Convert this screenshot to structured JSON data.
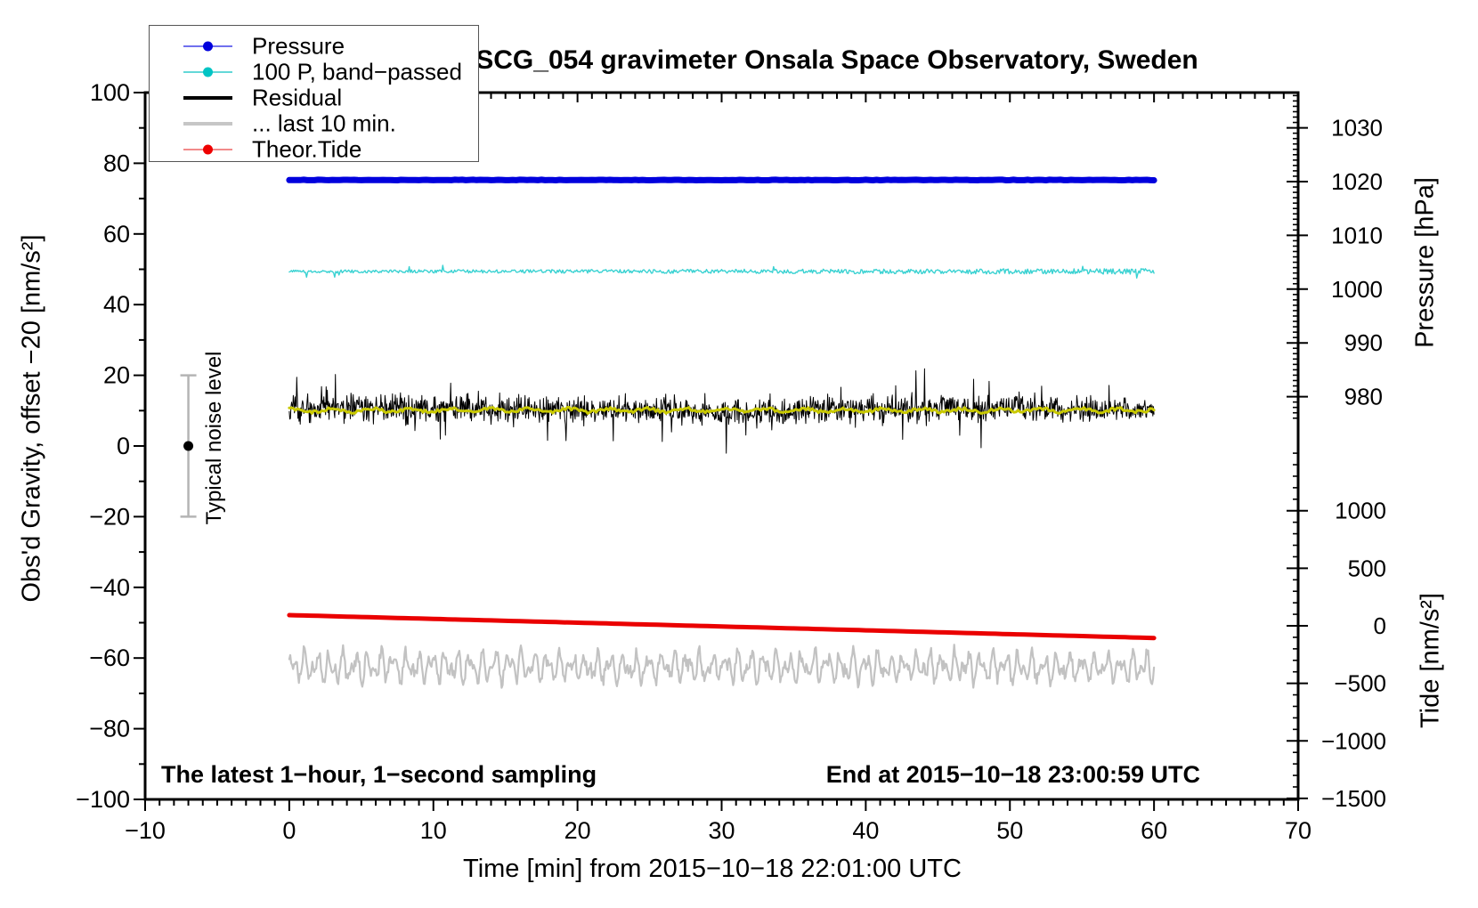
{
  "title": "SCG_054 gravimeter Onsala Space Observatory, Sweden",
  "legend": {
    "items": [
      {
        "label": "Pressure",
        "line_color": "#7070ee",
        "dot_color": "#0000dd",
        "line_width": 2
      },
      {
        "label": "100 P, band−passed",
        "line_color": "#63d8d8",
        "dot_color": "#00c4c4",
        "line_width": 2
      },
      {
        "label": "Residual",
        "line_color": "#000000",
        "dot_color": "",
        "line_width": 4
      },
      {
        "label": "... last 10 min.",
        "line_color": "#c6c6c6",
        "dot_color": "",
        "line_width": 4
      },
      {
        "label": "Theor.Tide",
        "line_color": "#f28a8a",
        "dot_color": "#ee0000",
        "line_width": 2
      }
    ]
  },
  "chart_data": {
    "type": "line",
    "title": "SCG_054 gravimeter Onsala Space Observatory, Sweden",
    "x_axis": {
      "label": "Time [min] from 2015−10−18 22:01:00 UTC",
      "range": [
        -10,
        70
      ],
      "major_ticks": [
        -10,
        0,
        10,
        20,
        30,
        40,
        50,
        60,
        70
      ],
      "minor_step": 1
    },
    "left_axis": {
      "label": "Obs'd Gravity, offset −20 [nm/s²]",
      "range": [
        -100,
        100
      ],
      "major_ticks": [
        100,
        80,
        60,
        40,
        20,
        0,
        -20,
        -40,
        -60,
        -80,
        -100
      ],
      "minor_step": 10
    },
    "pressure_axis": {
      "label": "Pressure [hPa]",
      "major_ticks": [
        1030,
        1020,
        1010,
        1000,
        990,
        980
      ],
      "minor_step": 1,
      "visible_range": [
        976,
        1036.6
      ]
    },
    "tide_axis": {
      "label": "Tide [nm/s²]",
      "major_ticks": [
        1000,
        500,
        0,
        -500,
        -1000,
        -1500
      ],
      "minor_step": 100,
      "visible_range": [
        -1500,
        1500
      ]
    },
    "series": [
      {
        "name": "Pressure",
        "axis": "pressure",
        "color": "#0000dd",
        "width": 7,
        "kind": "flat",
        "x_span": [
          0,
          60
        ],
        "value": 1020.3,
        "noise": 0.05,
        "points": 240
      },
      {
        "name": "100 P, band−passed",
        "axis": "left",
        "color": "#3ad2d2",
        "width": 1.4,
        "kind": "noise",
        "x_span": [
          0,
          60
        ],
        "mean": 49.4,
        "amplitude": 0.55,
        "points": 800
      },
      {
        "name": "Residual",
        "axis": "left",
        "color": "#000000",
        "width": 1,
        "kind": "spiky",
        "x_span": [
          0,
          60
        ],
        "mean": 10.2,
        "sigma": 2.6,
        "spike_amp": 6,
        "points": 1500
      },
      {
        "name": "Residual smoothed",
        "axis": "left",
        "color": "#c9c900",
        "width": 3,
        "kind": "smooth",
        "x_span": [
          0,
          60
        ],
        "mean": 10.1,
        "amplitude": 0.45,
        "points": 420
      },
      {
        "name": "... last 10 min.",
        "axis": "left",
        "color": "#c2c2c2",
        "width": 2.2,
        "kind": "wavy",
        "x_span": [
          0,
          60
        ],
        "mean": -62.5,
        "amplitude": 4.8,
        "points": 900
      },
      {
        "name": "Theor.Tide",
        "axis": "tide",
        "color": "#ea0000",
        "width": 5,
        "kind": "trend",
        "x_span": [
          0,
          60
        ],
        "start": 93,
        "end": -106,
        "points": 120
      }
    ],
    "noise_bar": {
      "label": "Typical noise level",
      "x": -7,
      "center": 0,
      "half_range": 20,
      "color": "#b4b4b4",
      "dot_color": "#000000"
    },
    "annotations": {
      "bottom_left": "The latest 1−hour, 1−second sampling",
      "bottom_right": "End at 2015−10−18 23:00:59 UTC"
    }
  }
}
